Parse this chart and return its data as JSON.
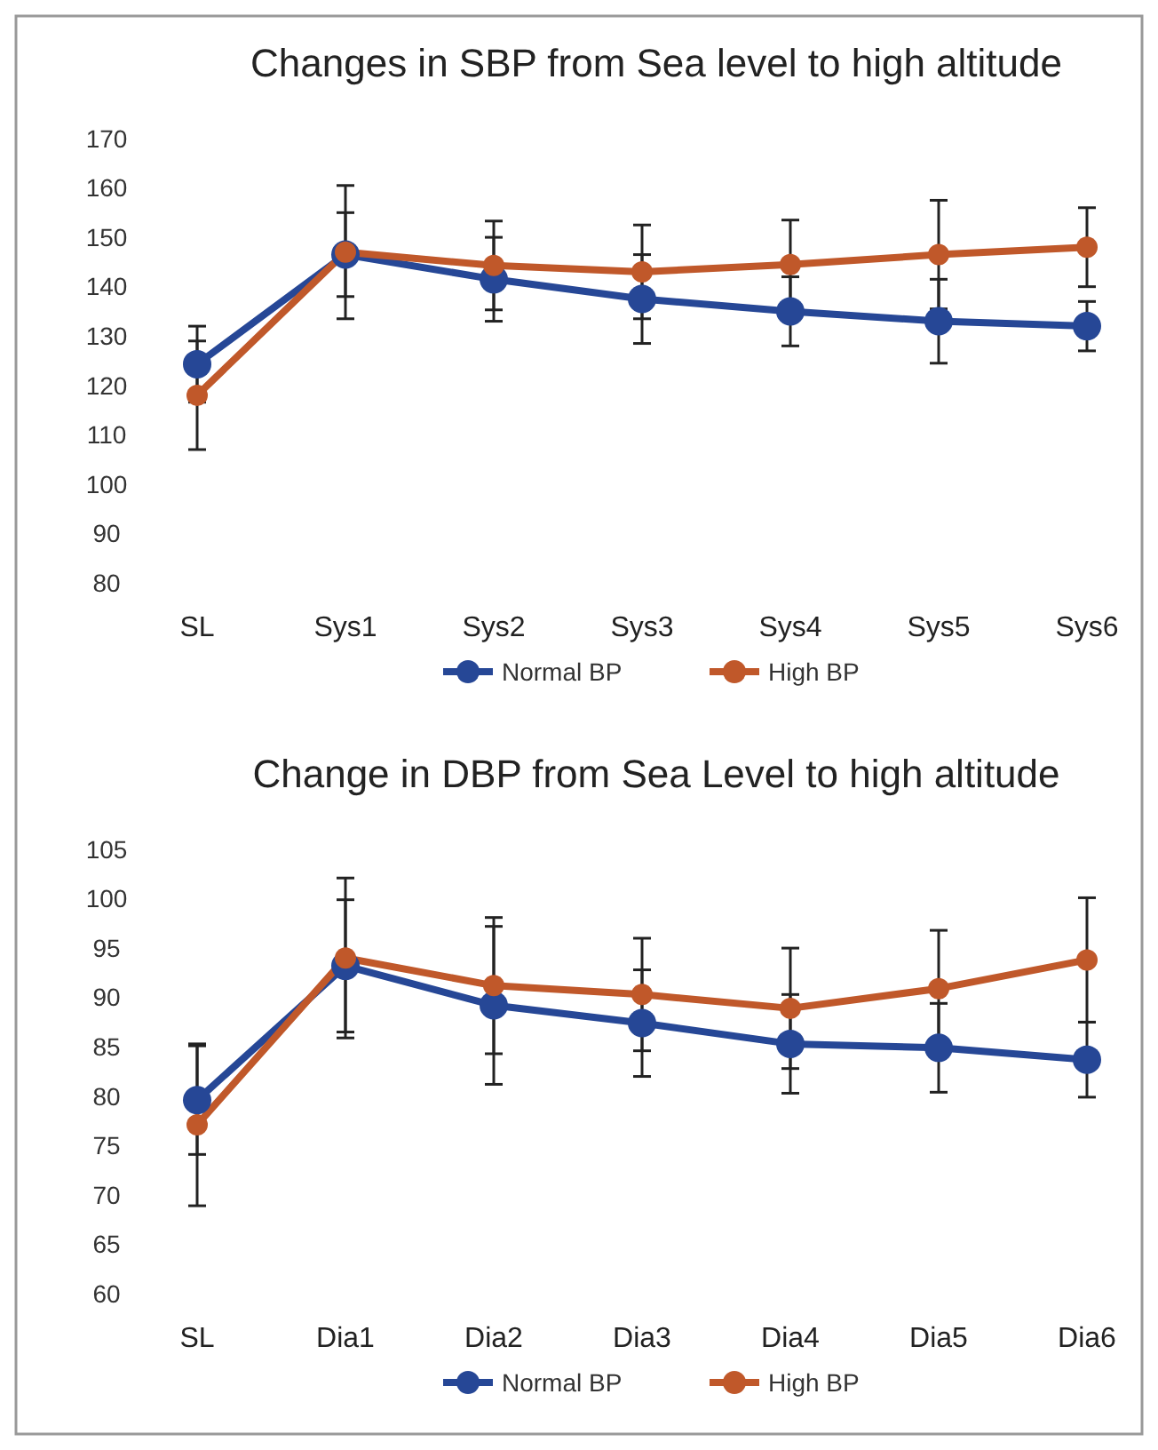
{
  "chart_data": [
    {
      "type": "line",
      "title": "Changes in SBP from Sea level to high altitude",
      "categories": [
        "SL",
        "Sys1",
        "Sys2",
        "Sys3",
        "Sys4",
        "Sys5",
        "Sys6"
      ],
      "ylim": [
        80,
        170
      ],
      "yticks": [
        80,
        90,
        100,
        110,
        120,
        130,
        140,
        150,
        160,
        170
      ],
      "grid": false,
      "legend": "bottom",
      "marker": "circle",
      "line_style": "solid",
      "series": [
        {
          "name": "Normal BP",
          "color": "#264796",
          "values": [
            124.3,
            146.5,
            141.5,
            137.5,
            135,
            133,
            132
          ],
          "errors": [
            7.7,
            8.5,
            8.5,
            9,
            7,
            8.5,
            5
          ]
        },
        {
          "name": "High BP",
          "color": "#c0582a",
          "values": [
            118,
            147,
            144.3,
            143,
            144.5,
            146.5,
            148
          ],
          "errors": [
            11,
            13.5,
            9,
            9.5,
            9,
            11,
            8
          ]
        }
      ]
    },
    {
      "type": "line",
      "title": "Change in DBP from Sea Level to high altitude",
      "categories": [
        "SL",
        "Dia1",
        "Dia2",
        "Dia3",
        "Dia4",
        "Dia5",
        "Dia6"
      ],
      "ylim": [
        60,
        105
      ],
      "yticks": [
        60,
        65,
        70,
        75,
        80,
        85,
        90,
        95,
        100,
        105
      ],
      "grid": false,
      "legend": "bottom",
      "marker": "circle",
      "line_style": "solid",
      "series": [
        {
          "name": "Normal BP",
          "color": "#264796",
          "values": [
            79.6,
            93.2,
            89.2,
            87.4,
            85.3,
            84.9,
            83.7
          ],
          "errors": [
            5.5,
            6.7,
            8,
            5.4,
            5,
            4.5,
            3.8
          ]
        },
        {
          "name": "High BP",
          "color": "#c0582a",
          "values": [
            77.1,
            94,
            91.2,
            90.3,
            88.9,
            90.9,
            93.8
          ],
          "errors": [
            8.2,
            8.1,
            6.9,
            5.7,
            6.1,
            5.9,
            6.3
          ]
        }
      ]
    }
  ]
}
